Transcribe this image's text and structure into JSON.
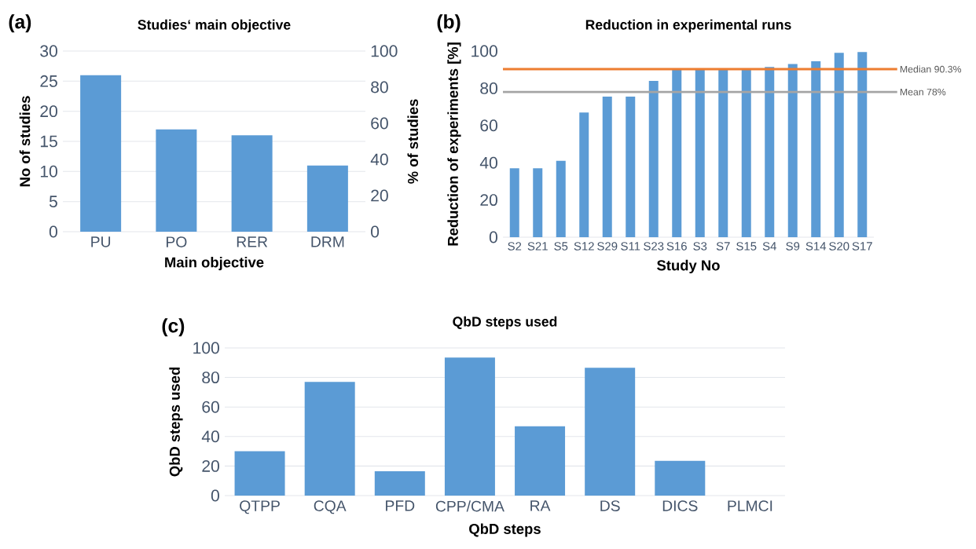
{
  "chart_data": [
    {
      "type": "bar",
      "title": "Studies‘ main objective",
      "xlabel": "Main objective",
      "ylabel": "No of studies",
      "y2label": "% of studies",
      "annotations": [
        "(a)"
      ],
      "categories": [
        "PU",
        "PO",
        "RER",
        "DRM"
      ],
      "values": [
        26,
        17,
        16,
        11
      ],
      "color": "#5b9bd5",
      "ylim": [
        0,
        30
      ],
      "yticks": [
        0,
        5,
        10,
        15,
        20,
        25,
        30
      ],
      "y2lim": [
        0,
        100
      ],
      "y2ticks": [
        0,
        20,
        40,
        60,
        80,
        100
      ],
      "grid": "y"
    },
    {
      "type": "bar",
      "title": "Reduction in experimental runs",
      "xlabel": "Study No",
      "ylabel": "Reduction of experiments [%]",
      "annotations": [
        "(b)"
      ],
      "categories": [
        "S2",
        "S21",
        "S5",
        "S12",
        "S29",
        "S11",
        "S23",
        "S16",
        "S3",
        "S7",
        "S15",
        "S4",
        "S9",
        "S14",
        "S20",
        "S17"
      ],
      "values": [
        37,
        37,
        41,
        67,
        75.5,
        75.5,
        84,
        90,
        90,
        90,
        90,
        91.5,
        93,
        94.5,
        99,
        99.5
      ],
      "color": "#5b9bd5",
      "ylim": [
        0,
        100
      ],
      "yticks": [
        0,
        20,
        40,
        60,
        80,
        100
      ],
      "ref_lines": [
        {
          "axis": "y",
          "value": 90.3,
          "label": "Median 90.3%",
          "color": "#ed7d31"
        },
        {
          "axis": "y",
          "value": 78,
          "label": "Mean 78%",
          "color": "#a5a5a5"
        }
      ]
    },
    {
      "type": "bar",
      "title": "QbD steps used",
      "xlabel": "QbD steps",
      "ylabel": "QbD steps used",
      "annotations": [
        "(c)"
      ],
      "categories": [
        "QTPP",
        "CQA",
        "PFD",
        "CPP/CMA",
        "RA",
        "DS",
        "DICS",
        "PLMCI"
      ],
      "values": [
        30,
        77,
        16.5,
        93.5,
        47,
        86.5,
        23.5,
        0
      ],
      "color": "#5b9bd5",
      "ylim": [
        0,
        100
      ],
      "yticks": [
        0,
        20,
        40,
        60,
        80,
        100
      ],
      "grid": "y"
    }
  ]
}
